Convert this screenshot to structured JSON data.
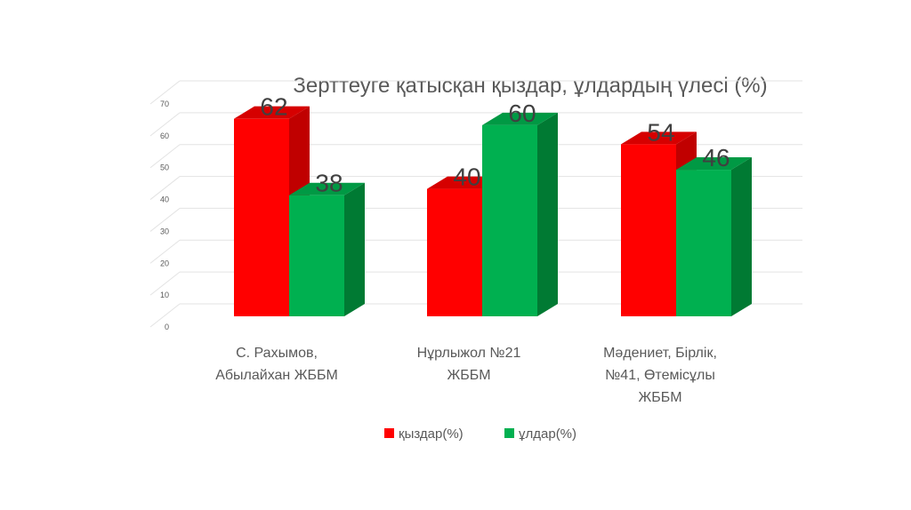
{
  "chart_data": {
    "type": "bar",
    "title": "Зерттеуге қатысқан қыздар, ұлдардың үлесі (%)",
    "xlabel": "",
    "ylabel": "",
    "ylim": [
      0,
      70
    ],
    "yticks": [
      0,
      10,
      20,
      30,
      40,
      50,
      60,
      70
    ],
    "grid": true,
    "legend_position": "bottom",
    "categories": [
      [
        "С. Рахымов,",
        "Абылайхан ЖББМ"
      ],
      [
        "Нұрлыжол №21",
        "ЖББМ"
      ],
      [
        "Мәдениет, Бірлік,",
        "№41, Өтемісұлы",
        "ЖББМ"
      ]
    ],
    "series": [
      {
        "name": "қыздар(%)",
        "values": [
          62,
          40,
          54
        ],
        "color": "#ff0000",
        "side_color": "#c00000",
        "top_color": "#d60000"
      },
      {
        "name": "ұлдар(%)",
        "values": [
          38,
          60,
          46
        ],
        "color": "#00b050",
        "side_color": "#007a33",
        "top_color": "#009944"
      }
    ]
  }
}
